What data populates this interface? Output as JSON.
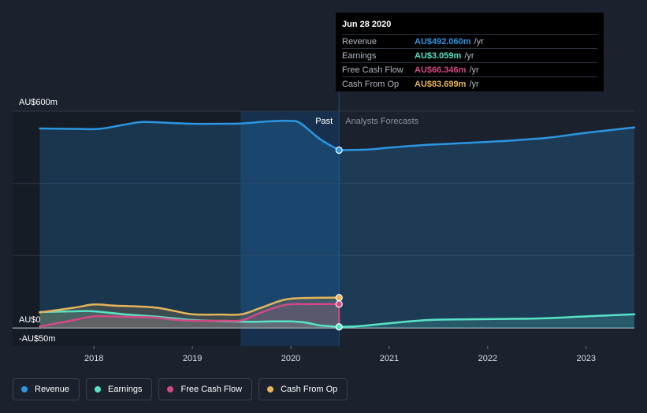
{
  "chart_data": {
    "type": "area",
    "x_domain": [
      2017.43,
      2023.49
    ],
    "y_domain": [
      -50,
      600
    ],
    "y_labels": [
      {
        "value": 600,
        "text": "AU$600m"
      },
      {
        "value": 0,
        "text": "AU$0"
      },
      {
        "value": -50,
        "text": "-AU$50m"
      }
    ],
    "x_ticks": [
      {
        "value": 2018,
        "text": "2018"
      },
      {
        "value": 2019,
        "text": "2019"
      },
      {
        "value": 2020,
        "text": "2020"
      },
      {
        "value": 2021,
        "text": "2021"
      },
      {
        "value": 2022,
        "text": "2022"
      },
      {
        "value": 2023,
        "text": "2023"
      }
    ],
    "gridlines": [
      600,
      400,
      200,
      0
    ],
    "divider_x": 2020.49,
    "past_label": "Past",
    "forecast_label": "Analysts Forecasts",
    "series": [
      {
        "name": "Revenue",
        "color": "#2b96e3",
        "past": [
          [
            2017.45,
            552
          ],
          [
            2017.8,
            551
          ],
          [
            2018.05,
            551
          ],
          [
            2018.3,
            562
          ],
          [
            2018.5,
            570
          ],
          [
            2018.8,
            567
          ],
          [
            2019.0,
            565
          ],
          [
            2019.3,
            565
          ],
          [
            2019.5,
            566
          ],
          [
            2019.8,
            572
          ],
          [
            2020.0,
            573
          ],
          [
            2020.1,
            566
          ],
          [
            2020.3,
            522
          ],
          [
            2020.49,
            492
          ]
        ],
        "forecast": [
          [
            2020.49,
            492
          ],
          [
            2020.8,
            494
          ],
          [
            2021.0,
            499
          ],
          [
            2021.4,
            507
          ],
          [
            2021.8,
            512
          ],
          [
            2022.2,
            518
          ],
          [
            2022.6,
            526
          ],
          [
            2023.0,
            540
          ],
          [
            2023.49,
            555
          ]
        ]
      },
      {
        "name": "Earnings",
        "color": "#58e3c6",
        "past": [
          [
            2017.45,
            44
          ],
          [
            2017.8,
            46
          ],
          [
            2018.0,
            46
          ],
          [
            2018.3,
            38
          ],
          [
            2018.6,
            32
          ],
          [
            2018.8,
            27
          ],
          [
            2019.0,
            22
          ],
          [
            2019.3,
            19
          ],
          [
            2019.6,
            17
          ],
          [
            2019.8,
            18
          ],
          [
            2020.0,
            18
          ],
          [
            2020.15,
            15
          ],
          [
            2020.3,
            7
          ],
          [
            2020.49,
            3
          ]
        ],
        "forecast": [
          [
            2020.49,
            3
          ],
          [
            2020.7,
            5
          ],
          [
            2021.0,
            13
          ],
          [
            2021.4,
            22
          ],
          [
            2021.8,
            24
          ],
          [
            2022.2,
            25
          ],
          [
            2022.6,
            27
          ],
          [
            2023.0,
            32
          ],
          [
            2023.49,
            38
          ]
        ]
      },
      {
        "name": "Free Cash Flow",
        "color": "#d54886",
        "past": [
          [
            2017.45,
            4
          ],
          [
            2017.8,
            22
          ],
          [
            2018.0,
            32
          ],
          [
            2018.3,
            31
          ],
          [
            2018.6,
            29
          ],
          [
            2018.8,
            23
          ],
          [
            2019.0,
            20
          ],
          [
            2019.3,
            20
          ],
          [
            2019.5,
            21
          ],
          [
            2019.7,
            43
          ],
          [
            2019.95,
            64
          ],
          [
            2020.2,
            66
          ],
          [
            2020.45,
            66
          ],
          [
            2020.49,
            66
          ]
        ],
        "forecast": []
      },
      {
        "name": "Cash From Op",
        "color": "#e6b45a",
        "past": [
          [
            2017.45,
            43
          ],
          [
            2017.8,
            56
          ],
          [
            2018.0,
            65
          ],
          [
            2018.2,
            62
          ],
          [
            2018.6,
            57
          ],
          [
            2018.8,
            48
          ],
          [
            2019.0,
            38
          ],
          [
            2019.3,
            37
          ],
          [
            2019.5,
            38
          ],
          [
            2019.7,
            56
          ],
          [
            2019.95,
            79
          ],
          [
            2020.2,
            83
          ],
          [
            2020.45,
            84
          ],
          [
            2020.49,
            84
          ]
        ],
        "forecast": []
      }
    ],
    "highlight_points": [
      {
        "x": 2020.49,
        "y": 492,
        "color": "#2b96e3"
      },
      {
        "x": 2020.49,
        "y": 84,
        "color": "#e6b45a"
      },
      {
        "x": 2020.49,
        "y": 66,
        "color": "#d54886"
      },
      {
        "x": 2020.49,
        "y": 3,
        "color": "#58e3c6"
      }
    ]
  },
  "tooltip": {
    "date": "Jun 28 2020",
    "rows": [
      {
        "label": "Revenue",
        "value": "AU$492.060m",
        "unit": "/yr",
        "color": "#2b96e3"
      },
      {
        "label": "Earnings",
        "value": "AU$3.059m",
        "unit": "/yr",
        "color": "#58e3c6"
      },
      {
        "label": "Free Cash Flow",
        "value": "AU$66.346m",
        "unit": "/yr",
        "color": "#d54886"
      },
      {
        "label": "Cash From Op",
        "value": "AU$83.699m",
        "unit": "/yr",
        "color": "#e6b45a"
      }
    ]
  },
  "legend": [
    {
      "label": "Revenue",
      "color": "#2b96e3"
    },
    {
      "label": "Earnings",
      "color": "#58e3c6"
    },
    {
      "label": "Free Cash Flow",
      "color": "#d54886"
    },
    {
      "label": "Cash From Op",
      "color": "#e6b45a"
    }
  ]
}
